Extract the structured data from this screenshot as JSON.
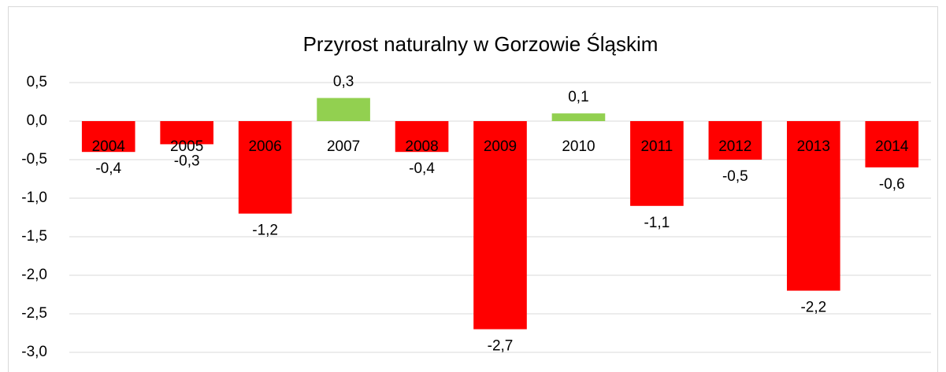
{
  "chart_data": {
    "type": "bar",
    "title": "Przyrost naturalny w Gorzowie Śląskim",
    "categories": [
      "2004",
      "2005",
      "2006",
      "2007",
      "2008",
      "2009",
      "2010",
      "2011",
      "2012",
      "2013",
      "2014"
    ],
    "values": [
      -0.4,
      -0.3,
      -1.2,
      0.3,
      -0.4,
      -2.7,
      0.1,
      -1.1,
      -0.5,
      -2.2,
      -0.6
    ],
    "value_labels": [
      "-0,4",
      "-0,3",
      "-1,2",
      "0,3",
      "-0,4",
      "-2,7",
      "0,1",
      "-1,1",
      "-0,5",
      "-2,2",
      "-0,6"
    ],
    "colors": [
      "#ff0000",
      "#ff0000",
      "#ff0000",
      "#92d050",
      "#ff0000",
      "#ff0000",
      "#92d050",
      "#ff0000",
      "#ff0000",
      "#ff0000",
      "#ff0000"
    ],
    "ylim": [
      -3,
      0.5
    ],
    "yticks": [
      {
        "value": 0.5,
        "label": "0,5"
      },
      {
        "value": 0,
        "label": "0,0"
      },
      {
        "value": -0.5,
        "label": "-0,5"
      },
      {
        "value": -1,
        "label": "-1,0"
      },
      {
        "value": -1.5,
        "label": "-1,5"
      },
      {
        "value": -2,
        "label": "-2,0"
      },
      {
        "value": -2.5,
        "label": "-2,5"
      },
      {
        "value": -3,
        "label": "-3,0"
      }
    ],
    "grid": true
  }
}
